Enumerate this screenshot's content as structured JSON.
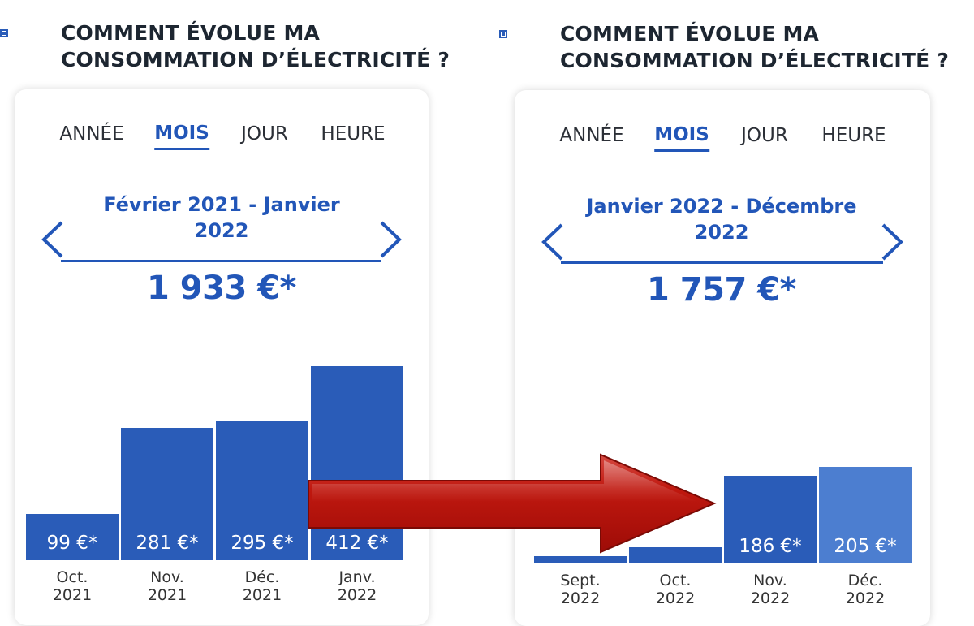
{
  "panels": [
    {
      "heading_line1": "COMMENT ÉVOLUE MA",
      "heading_line2": "CONSOMMATION D’ÉLECTRICITÉ ?",
      "tabs": [
        "ANNÉE",
        "MOIS",
        "JOUR",
        "HEURE"
      ],
      "active_tab": "MOIS",
      "period_line1": "Février 2021 - Janvier",
      "period_line2": "2022",
      "total": "1 933 €*",
      "bars": [
        {
          "label": "99 €*",
          "month": "Oct.",
          "year": "2021",
          "value": 99
        },
        {
          "label": "281 €*",
          "month": "Nov.",
          "year": "2021",
          "value": 281
        },
        {
          "label": "295 €*",
          "month": "Déc.",
          "year": "2021",
          "value": 295
        },
        {
          "label": "412 €*",
          "month": "Janv.",
          "year": "2022",
          "value": 412
        }
      ]
    },
    {
      "heading_line1": "COMMENT ÉVOLUE MA",
      "heading_line2": "CONSOMMATION D’ÉLECTRICITÉ ?",
      "tabs": [
        "ANNÉE",
        "MOIS",
        "JOUR",
        "HEURE"
      ],
      "active_tab": "MOIS",
      "period_line1": "Janvier 2022 - Décembre",
      "period_line2": "2022",
      "total": "1 757 €*",
      "bars": [
        {
          "label": "",
          "month": "Sept.",
          "year": "2022",
          "value": 16
        },
        {
          "label": "",
          "month": "Oct.",
          "year": "2022",
          "value": 34
        },
        {
          "label": "186 €*",
          "month": "Nov.",
          "year": "2022",
          "value": 186
        },
        {
          "label": "205 €*",
          "month": "Déc.",
          "year": "2022",
          "value": 205
        }
      ]
    }
  ],
  "colors": {
    "accent": "#2256b8",
    "bar": "#2a5cb8",
    "bar_light": "#4c7ed0",
    "arrow": "#c0140e"
  }
}
